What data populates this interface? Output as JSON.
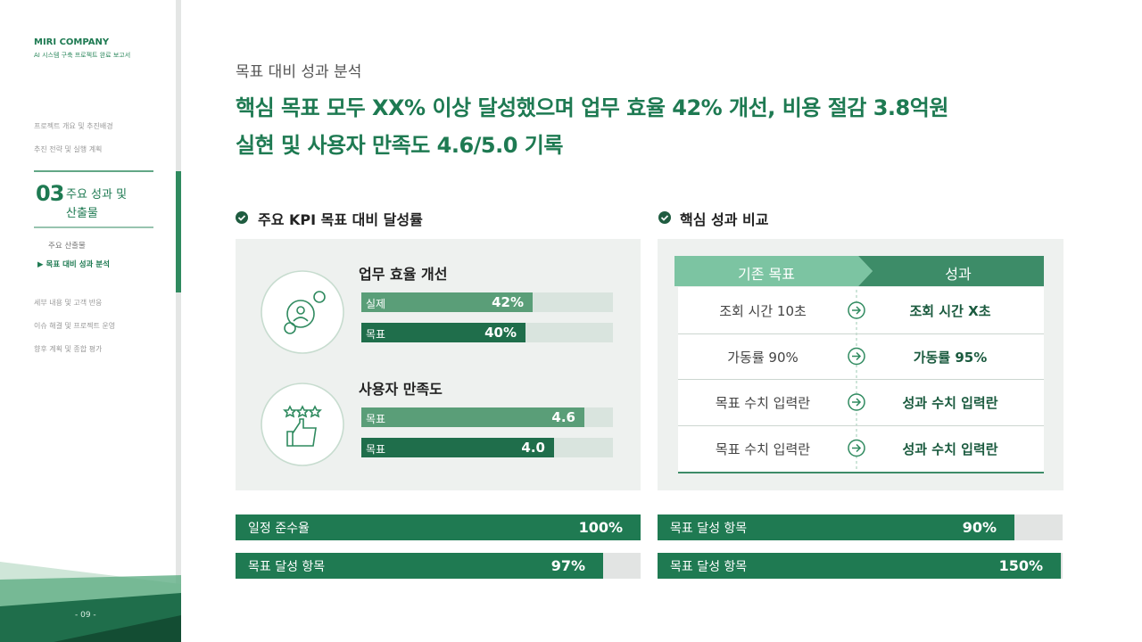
{
  "sidebar": {
    "brand": "MIRI COMPANY",
    "subtitle": "AI 시스템 구축 프로젝트 완료 보고서",
    "nav_before": [
      "프로젝트 개요 및 추진배경",
      "추진 전략 및 실행 계획"
    ],
    "active_number": "03",
    "active_title": [
      "주요 성과 및",
      "산출물"
    ],
    "sub_items": [
      "주요 산출물",
      "▶ 목표 대비 성과 분석"
    ],
    "nav_after": [
      "세부 내용 및 고객 반응",
      "이슈 해결 및 프로젝트 운영",
      "향후 계획 및 종합 평가"
    ],
    "page_number": "- 09 -"
  },
  "header": {
    "eyebrow": "목표 대비 성과 분석",
    "headline": [
      "핵심 목표 모두 XX% 이상 달성했으며 업무 효율 42% 개선, 비용 절감 3.8억원",
      "실현 및 사용자 만족도 4.6/5.0 기록"
    ]
  },
  "kpi_panel": {
    "title": "주요 KPI 목표 대비 달성률",
    "groups": [
      {
        "title": "업무 효율 개선",
        "bars": [
          {
            "label": "실제",
            "value": "42%"
          },
          {
            "label": "목표",
            "value": "40%"
          }
        ]
      },
      {
        "title": "사용자 만족도",
        "bars": [
          {
            "label": "목표",
            "value": "4.6"
          },
          {
            "label": "목표",
            "value": "4.0"
          }
        ]
      }
    ]
  },
  "comparison_panel": {
    "title": "핵심 성과 비교",
    "headers": [
      "기존 목표",
      "성과"
    ],
    "rows": [
      [
        "조회 시간 10초",
        "조회 시간 X초"
      ],
      [
        "가동률 90%",
        "가동률 95%"
      ],
      [
        "목표 수치 입력란",
        "성과 수치 입력란"
      ],
      [
        "목표 수치 입력란",
        "성과 수치 입력란"
      ]
    ]
  },
  "bottom_bars": {
    "left": [
      {
        "label": "일정 준수율",
        "value": "100%"
      },
      {
        "label": "목표 달성 항목",
        "value": "97%"
      }
    ],
    "right": [
      {
        "label": "목표 달성 항목",
        "value": "90%"
      },
      {
        "label": "목표 달성 항목",
        "value": "150%"
      }
    ]
  }
}
